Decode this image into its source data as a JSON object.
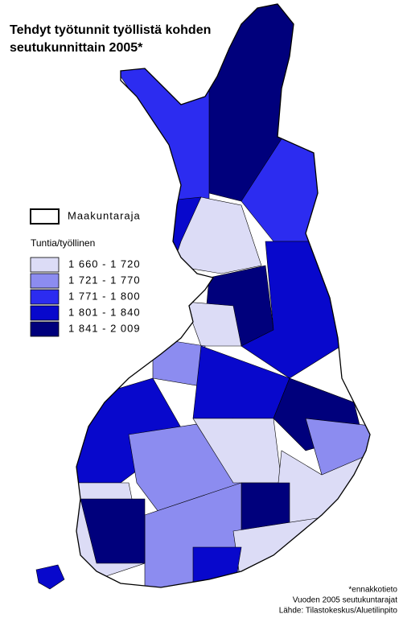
{
  "header": {
    "title_lines": [
      "Tehdyt työtunnit työllistä kohden",
      "seutukunnittain 2005*"
    ]
  },
  "legend": {
    "boundary_label": "Maakuntaraja",
    "title": "Tuntia/työllinen",
    "classes": [
      {
        "label": "1 660 - 1 720",
        "color": "#dcdcf6"
      },
      {
        "label": "1 721 - 1 770",
        "color": "#8c8cf0"
      },
      {
        "label": "1 771 - 1 800",
        "color": "#2c2cf0"
      },
      {
        "label": "1 801 - 1 840",
        "color": "#0808cc"
      },
      {
        "label": "1 841 - 2 009",
        "color": "#00007c"
      }
    ]
  },
  "notes": [
    "*ennakkotieto",
    "Vuoden 2005 seutukuntarajat",
    "Lähde: Tilastokeskus/Aluetilinpito"
  ]
}
